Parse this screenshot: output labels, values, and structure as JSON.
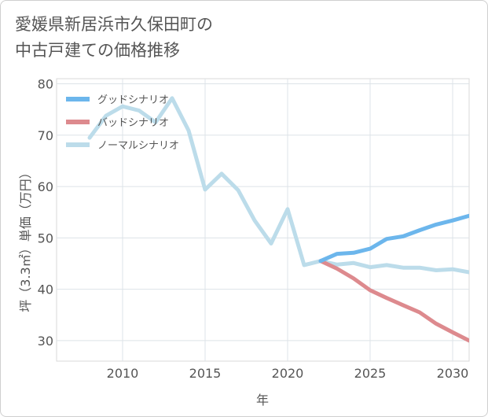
{
  "title_lines": [
    "愛媛県新居浜市久保田町の",
    "中古戸建ての価格推移"
  ],
  "chart_data": {
    "type": "line",
    "xlabel": "年",
    "ylabel": "坪（3.3㎡）単価（万円）",
    "xlim": [
      2006,
      2031
    ],
    "ylim": [
      26,
      81
    ],
    "x_ticks": [
      2010,
      2015,
      2020,
      2025,
      2030
    ],
    "y_ticks": [
      30,
      40,
      50,
      60,
      70,
      80
    ],
    "grid": true,
    "legend_position": "top-left",
    "series": [
      {
        "name": "グッドシナリオ",
        "color": "#6cb6ec",
        "x": [
          2022,
          2023,
          2024,
          2025,
          2026,
          2027,
          2028,
          2029,
          2030,
          2031
        ],
        "y": [
          45.5,
          46.9,
          47.1,
          47.9,
          49.8,
          50.3,
          51.5,
          52.6,
          53.4,
          54.3
        ]
      },
      {
        "name": "バッドシナリオ",
        "color": "#dd8a8e",
        "x": [
          2022,
          2023,
          2024,
          2025,
          2026,
          2027,
          2028,
          2029,
          2030,
          2031
        ],
        "y": [
          45.5,
          44.0,
          42.1,
          39.8,
          38.3,
          36.9,
          35.5,
          33.3,
          31.6,
          30.0
        ]
      },
      {
        "name": "ノーマルシナリオ",
        "color": "#bcdcea",
        "x": [
          2008,
          2009,
          2010,
          2011,
          2012,
          2013,
          2014,
          2015,
          2016,
          2017,
          2018,
          2019,
          2020,
          2021,
          2022,
          2023,
          2024,
          2025,
          2026,
          2027,
          2028,
          2029,
          2030,
          2031
        ],
        "y": [
          69.5,
          73.8,
          75.6,
          74.8,
          72.5,
          77.2,
          70.9,
          59.4,
          62.5,
          59.3,
          53.4,
          48.9,
          55.6,
          44.7,
          45.5,
          44.8,
          45.1,
          44.3,
          44.7,
          44.2,
          44.2,
          43.7,
          43.9,
          43.3
        ]
      }
    ]
  }
}
